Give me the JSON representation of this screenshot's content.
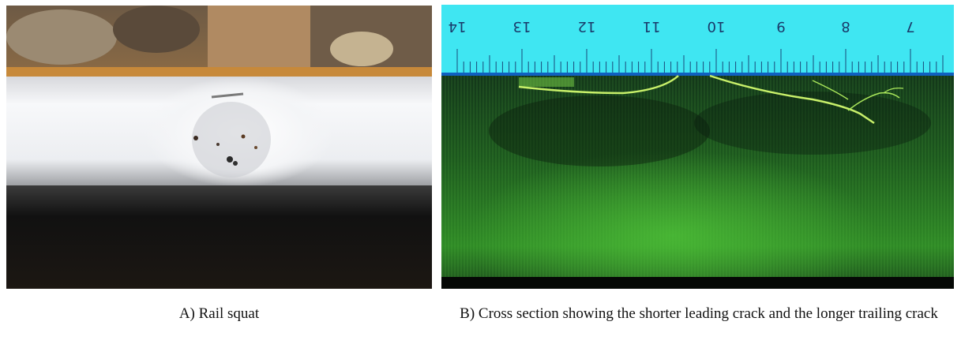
{
  "panel_a": {
    "caption": "A) Rail squat",
    "colors": {
      "ballast": "#7a6246",
      "rail_top_edge": "#c7893a",
      "rail_head": "#f2f3f5",
      "rail_shadow": "#141414"
    }
  },
  "panel_b": {
    "caption": "B) Cross section showing the shorter leading crack and the longer trailing crack",
    "ruler": {
      "color": "#3fe6f2",
      "labels": [
        "14",
        "13",
        "12",
        "11",
        "10",
        "9",
        "8",
        "7"
      ]
    },
    "colors": {
      "section_dark": "#0f2a12",
      "section_green": "#3aa32a",
      "crack": "#c8f06a"
    }
  }
}
